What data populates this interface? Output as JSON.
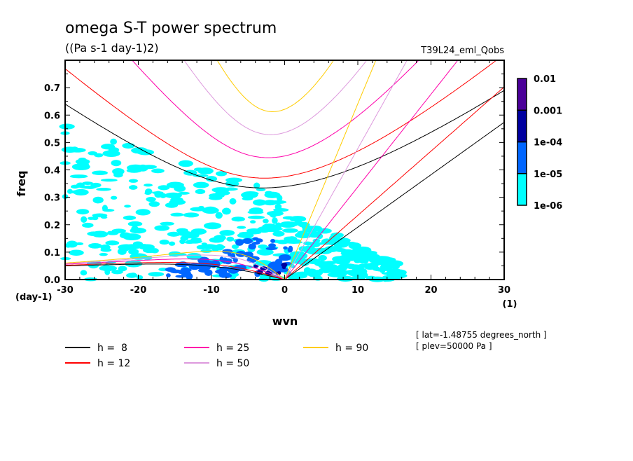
{
  "chart_data": {
    "type": "heatmap",
    "title": "omega S-T power spectrum",
    "subtitle": "((Pa s-1 day-1)2)",
    "run_label": "T39L24_eml_Qobs",
    "xlabel": "wvn",
    "x_unit": "(1)",
    "ylabel": "freq",
    "y_unit": "(day-1)",
    "xlim": [
      -30,
      30
    ],
    "ylim": [
      0,
      0.8
    ],
    "x_ticks": [
      "-30",
      "-20",
      "-10",
      "0",
      "10",
      "20",
      "30"
    ],
    "y_ticks": [
      "0.0",
      "0.1",
      "0.2",
      "0.3",
      "0.4",
      "0.5",
      "0.6",
      "0.7"
    ],
    "colorbar": {
      "scale": "log",
      "levels": [
        "1e-06",
        "1e-05",
        "1e-04",
        "0.001",
        "0.01"
      ],
      "colors": [
        "#00ffff",
        "#0066ff",
        "#0000a0",
        "#4b0099"
      ]
    },
    "dispersion_curves": [
      {
        "label": "h =  8",
        "h": 8,
        "color": "#000000"
      },
      {
        "label": "h = 12",
        "h": 12,
        "color": "#ff0000"
      },
      {
        "label": "h = 25",
        "h": 25,
        "color": "#ff00aa"
      },
      {
        "label": "h = 50",
        "h": 50,
        "color": "#dd99dd"
      },
      {
        "label": "h = 90",
        "h": 90,
        "color": "#ffcc00"
      }
    ],
    "annotations": [
      "[ lat=-1.48755 degrees_north ]",
      "[ plev=50000 Pa ]"
    ]
  }
}
